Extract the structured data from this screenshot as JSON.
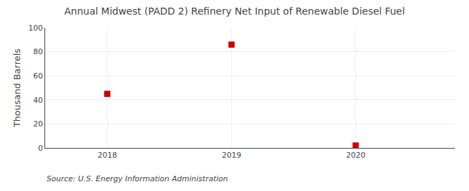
{
  "chart_data": {
    "type": "scatter",
    "title": "Annual Midwest (PADD 2) Refinery Net Input of Renewable Diesel Fuel",
    "ylabel": "Thousand Barrels",
    "annotations": [
      "Source: U.S. Energy Information Administration"
    ],
    "x": [
      2018,
      2019,
      2020
    ],
    "values": [
      45,
      86,
      2
    ],
    "color": "#cc0000",
    "marker": "square",
    "xlim": [
      2017.5,
      2020.8
    ],
    "xticks": [
      2018,
      2019,
      2020
    ],
    "ylim": [
      0,
      100
    ],
    "yticks": [
      0,
      20,
      40,
      60,
      80,
      100
    ],
    "grid": true
  }
}
